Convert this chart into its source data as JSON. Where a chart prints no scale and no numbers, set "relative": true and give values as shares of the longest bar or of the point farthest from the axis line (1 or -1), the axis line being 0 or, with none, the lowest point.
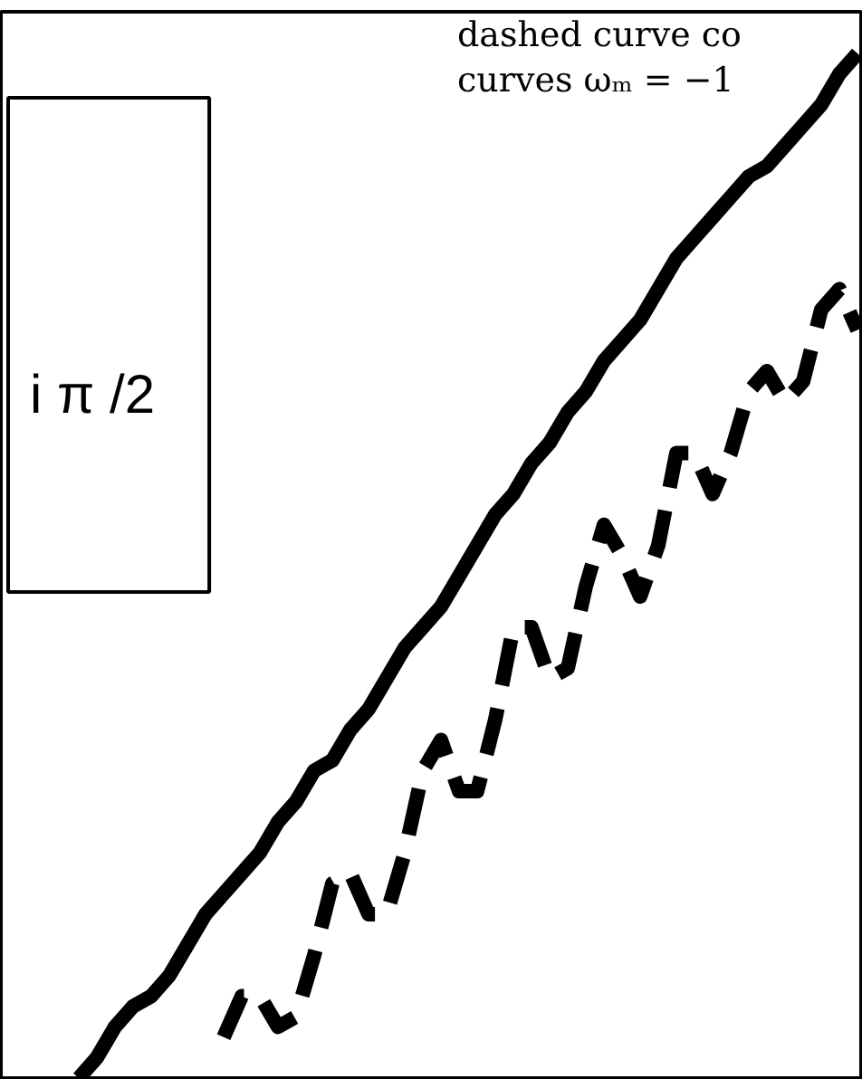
{
  "chart_data": {
    "type": "line",
    "relative": true,
    "categories": [
      null,
      null,
      null,
      null,
      null,
      null,
      null,
      null,
      null,
      null,
      null,
      null,
      null,
      null,
      null,
      null,
      null,
      null,
      null,
      null,
      null,
      null,
      null,
      null,
      null,
      null,
      null,
      null,
      null,
      null,
      null,
      null,
      null,
      null,
      null,
      null,
      null,
      null,
      null,
      null,
      null,
      null,
      null,
      null
    ],
    "annotations": [
      "dashed curve co",
      "curves ωₘ = −1",
      "i π /2"
    ],
    "series": [
      {
        "color": "#000000",
        "line_style": "solid",
        "values": [
          0,
          0.02,
          0.05,
          0.07,
          0.08,
          0.1,
          0.13,
          0.16,
          0.18,
          0.2,
          0.22,
          0.25,
          0.27,
          0.3,
          0.31,
          0.34,
          0.36,
          0.39,
          0.42,
          0.44,
          0.46,
          0.49,
          0.52,
          0.55,
          0.57,
          0.6,
          0.62,
          0.65,
          0.67,
          0.7,
          0.72,
          0.74,
          0.77,
          0.8,
          0.82,
          0.84,
          0.86,
          0.88,
          0.89,
          0.91,
          0.93,
          0.95,
          0.98,
          1.0
        ]
      },
      {
        "color": "#000000",
        "line_style": "dashed",
        "values": [
          null,
          null,
          null,
          null,
          null,
          null,
          null,
          null,
          0.04,
          0.08,
          0.08,
          0.05,
          0.06,
          0.12,
          0.19,
          0.2,
          0.16,
          0.16,
          0.22,
          0.3,
          0.33,
          0.28,
          0.28,
          0.35,
          0.44,
          0.44,
          0.39,
          0.4,
          0.48,
          0.54,
          0.51,
          0.47,
          0.52,
          0.61,
          0.61,
          0.57,
          0.61,
          0.67,
          0.69,
          0.66,
          0.68,
          0.75,
          0.77,
          0.73
        ]
      }
    ]
  }
}
